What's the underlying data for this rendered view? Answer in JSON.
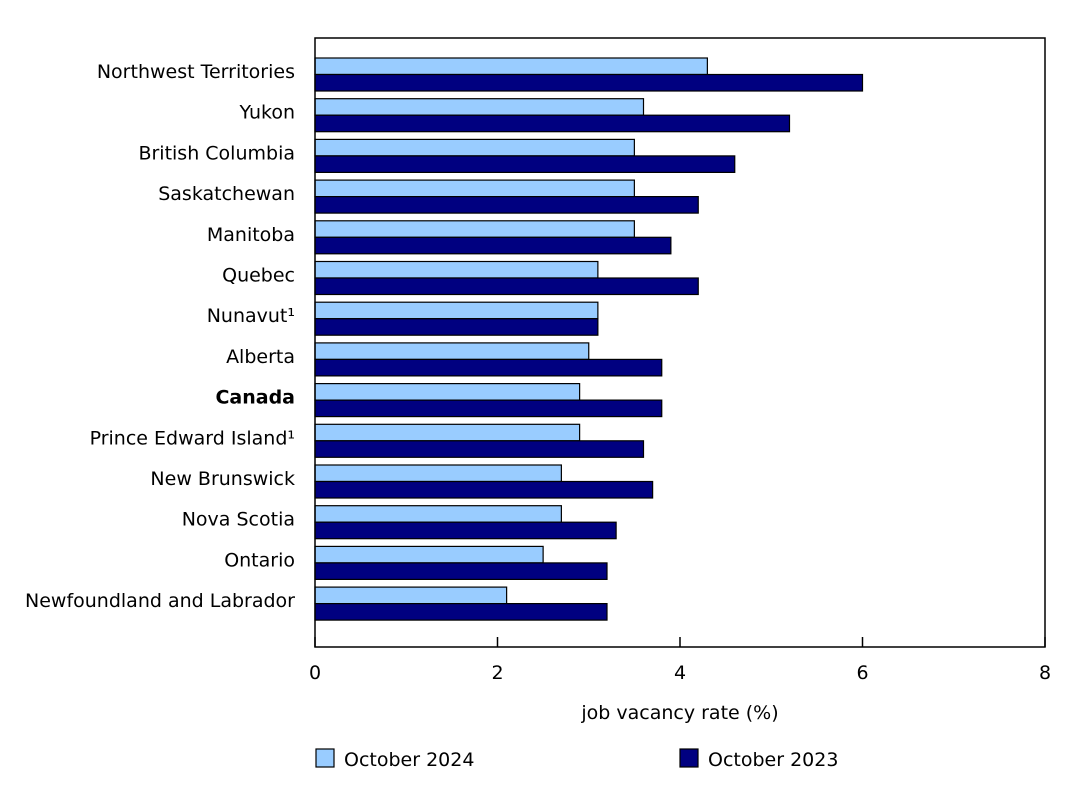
{
  "chart_data": {
    "type": "bar",
    "orientation": "horizontal",
    "categories": [
      "Northwest Territories",
      "Yukon",
      "British Columbia",
      "Saskatchewan",
      "Manitoba",
      "Quebec",
      "Nunavut¹",
      "Alberta",
      "Canada",
      "Prince Edward Island¹",
      "New Brunswick",
      "Nova Scotia",
      "Ontario",
      "Newfoundland and Labrador"
    ],
    "bold_categories": [
      "Canada"
    ],
    "series": [
      {
        "name": "October 2024",
        "color": "#99ccff",
        "values": [
          4.3,
          3.6,
          3.5,
          3.5,
          3.5,
          3.1,
          3.1,
          3.0,
          2.9,
          2.9,
          2.7,
          2.7,
          2.5,
          2.1
        ]
      },
      {
        "name": "October 2023",
        "color": "#000080",
        "values": [
          6.0,
          5.2,
          4.6,
          4.2,
          3.9,
          4.2,
          3.1,
          3.8,
          3.8,
          3.6,
          3.7,
          3.3,
          3.2,
          3.2
        ]
      }
    ],
    "xlabel": "job vacancy rate (%)",
    "xlim": [
      0,
      8
    ],
    "xticks": [
      "0",
      "2",
      "4",
      "6",
      "8"
    ],
    "grid": false,
    "legend_position": "bottom"
  }
}
